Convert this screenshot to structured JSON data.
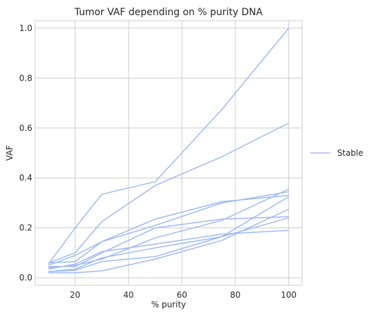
{
  "chart_data": {
    "type": "line",
    "title": "Tumor VAF depending on % purity DNA",
    "xlabel": "% purity",
    "ylabel": "VAF",
    "xlim": [
      5,
      105
    ],
    "ylim": [
      -0.03,
      1.03
    ],
    "xticks": [
      20,
      40,
      60,
      80,
      100
    ],
    "yticks": [
      0.0,
      0.2,
      0.4,
      0.6,
      0.8,
      1.0
    ],
    "ytick_labels": [
      "0.0",
      "0.2",
      "0.4",
      "0.6",
      "0.8",
      "1.0"
    ],
    "grid": true,
    "legend": {
      "placement": "outside-right",
      "entries": [
        "Stable"
      ]
    },
    "color": "#9db9f7",
    "x": [
      10,
      20,
      30,
      50,
      75,
      100
    ],
    "series": [
      {
        "name": "Stable",
        "values": [
          0.055,
          0.2,
          0.335,
          0.385,
          0.675,
          1.0
        ]
      },
      {
        "values": [
          0.06,
          0.1,
          0.225,
          0.37,
          0.485,
          0.62
        ]
      },
      {
        "values": [
          0.06,
          0.065,
          0.145,
          0.235,
          0.305,
          0.33
        ]
      },
      {
        "values": [
          0.05,
          0.09,
          0.145,
          0.21,
          0.3,
          0.345
        ]
      },
      {
        "values": [
          0.045,
          0.045,
          0.1,
          0.2,
          0.235,
          0.245
        ]
      },
      {
        "values": [
          0.04,
          0.05,
          0.075,
          0.16,
          0.23,
          0.355
        ]
      },
      {
        "values": [
          0.035,
          0.055,
          0.105,
          0.135,
          0.175,
          0.19
        ]
      },
      {
        "values": [
          0.025,
          0.035,
          0.08,
          0.12,
          0.165,
          0.24
        ]
      },
      {
        "values": [
          0.025,
          0.03,
          0.065,
          0.085,
          0.165,
          0.325
        ]
      },
      {
        "values": [
          0.02,
          0.02,
          0.028,
          0.075,
          0.15,
          0.275
        ]
      }
    ]
  }
}
